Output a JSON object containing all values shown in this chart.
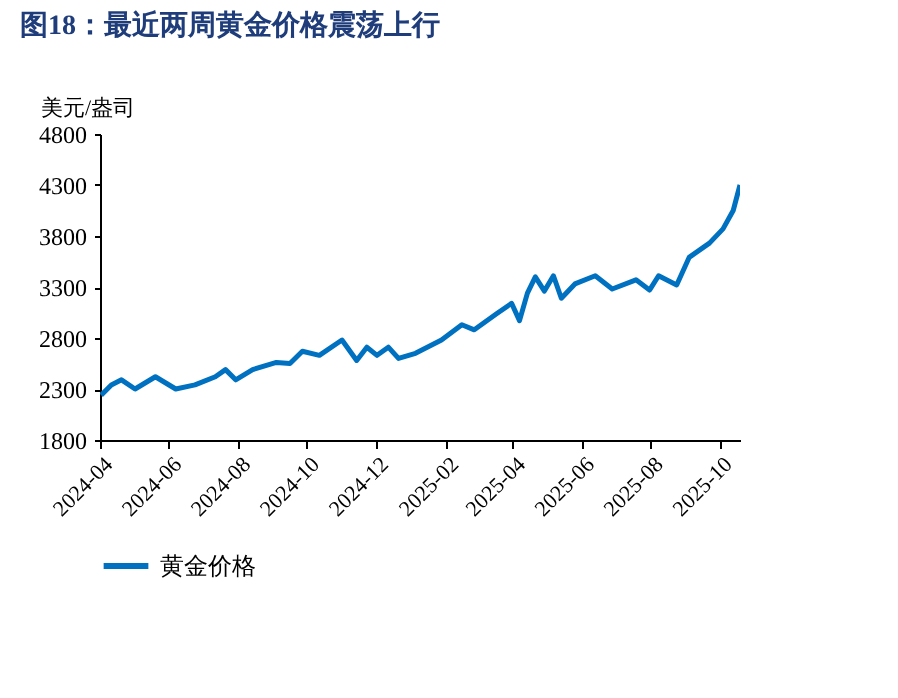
{
  "chart_data": {
    "type": "line",
    "title": "图18：最近两周黄金价格震荡上行",
    "ylabel": "美元/盎司",
    "x": [
      "2024-04-02",
      "2024-04-11",
      "2024-04-20",
      "2024-05-02",
      "2024-05-20",
      "2024-06-07",
      "2024-06-24",
      "2024-07-12",
      "2024-07-21",
      "2024-07-30",
      "2024-08-14",
      "2024-09-04",
      "2024-09-16",
      "2024-09-27",
      "2024-10-12",
      "2024-11-01",
      "2024-11-14",
      "2024-11-23",
      "2024-12-02",
      "2024-12-12",
      "2024-12-21",
      "2025-01-05",
      "2025-01-28",
      "2025-02-15",
      "2025-02-26",
      "2025-03-18",
      "2025-03-31",
      "2025-04-07",
      "2025-04-14",
      "2025-04-21",
      "2025-04-29",
      "2025-05-07",
      "2025-05-14",
      "2025-05-26",
      "2025-06-13",
      "2025-06-28",
      "2025-07-19",
      "2025-07-31",
      "2025-08-08",
      "2025-08-24",
      "2025-09-04",
      "2025-09-22",
      "2025-10-04",
      "2025-10-13",
      "2025-10-19"
    ],
    "series": [
      {
        "name": "黄金价格",
        "color": "#0070c0",
        "values": [
          2240,
          2340,
          2390,
          2300,
          2420,
          2300,
          2340,
          2420,
          2490,
          2390,
          2490,
          2560,
          2550,
          2670,
          2630,
          2780,
          2580,
          2710,
          2630,
          2710,
          2600,
          2650,
          2780,
          2930,
          2880,
          3040,
          3140,
          2970,
          3240,
          3400,
          3260,
          3410,
          3190,
          3330,
          3410,
          3280,
          3370,
          3270,
          3410,
          3320,
          3590,
          3730,
          3870,
          4050,
          4300
        ]
      }
    ],
    "xlim": [
      "2024-04-01",
      "2025-10-19"
    ],
    "xticks": [
      {
        "value": "2024-04-01",
        "label": "2024-04"
      },
      {
        "value": "2024-06-01",
        "label": "2024-06"
      },
      {
        "value": "2024-08-01",
        "label": "2024-08"
      },
      {
        "value": "2024-10-01",
        "label": "2024-10"
      },
      {
        "value": "2024-12-01",
        "label": "2024-12"
      },
      {
        "value": "2025-02-01",
        "label": "2025-02"
      },
      {
        "value": "2025-04-01",
        "label": "2025-04"
      },
      {
        "value": "2025-06-01",
        "label": "2025-06"
      },
      {
        "value": "2025-08-01",
        "label": "2025-08"
      },
      {
        "value": "2025-10-01",
        "label": "2025-10"
      }
    ],
    "ylim": [
      1800,
      4800
    ],
    "yticks": [
      1800,
      2300,
      2800,
      3300,
      3800,
      4300,
      4800
    ],
    "grid": false,
    "legend": "bottom",
    "line_style": "solid",
    "marker": "none"
  }
}
